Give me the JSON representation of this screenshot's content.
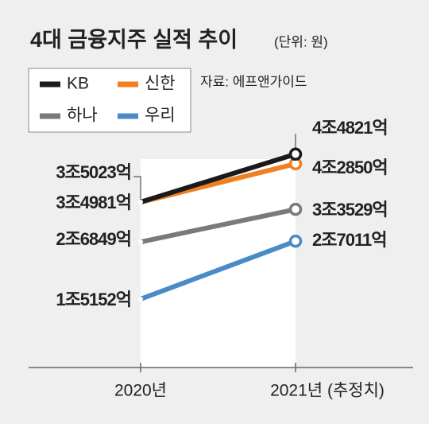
{
  "chart_data": {
    "type": "line",
    "title": "4대 금융지주 실적 추이",
    "subtitle": "(단위: 원)",
    "source": "자료: 에프앤가이드",
    "categories": [
      "2020년",
      "2021년 (추정치)"
    ],
    "series": [
      {
        "name": "KB",
        "color": "#1a1a1a",
        "values": [
          35023,
          44821
        ],
        "value_labels": [
          "3조5023억",
          "4조4821억"
        ]
      },
      {
        "name": "신한",
        "color": "#f07f22",
        "values": [
          34981,
          42850
        ],
        "value_labels": [
          "3조4981억",
          "4조2850억"
        ]
      },
      {
        "name": "하나",
        "color": "#7a7a7a",
        "values": [
          26849,
          33529
        ],
        "value_labels": [
          "2조6849억",
          "3조3529억"
        ]
      },
      {
        "name": "우리",
        "color": "#4a8ac8",
        "values": [
          15152,
          27011
        ],
        "value_labels": [
          "1조5152억",
          "2조7011억"
        ]
      }
    ]
  }
}
